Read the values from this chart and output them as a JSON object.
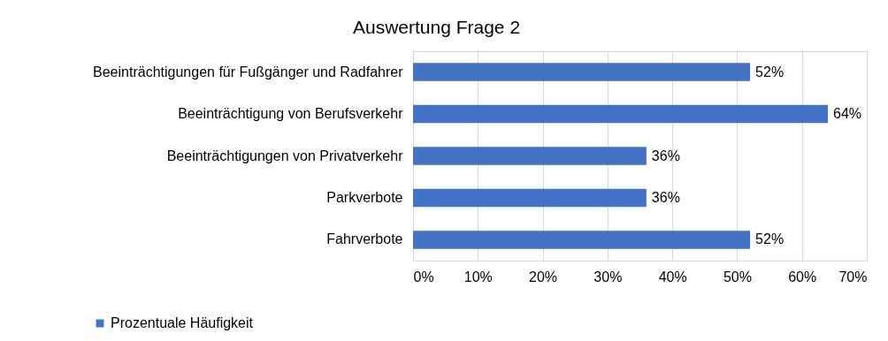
{
  "chart_data": {
    "type": "bar",
    "orientation": "horizontal",
    "title": "Auswertung Frage 2",
    "categories": [
      "Beeinträchtigungen für Fußgänger und Radfahrer",
      "Beeinträchtigung von Berufsverkehr",
      "Beeinträchtigungen von Privatverkehr",
      "Parkverbote",
      "Fahrverbote"
    ],
    "series": [
      {
        "name": "Prozentuale Häufigkeit",
        "color": "#4472c4",
        "values": [
          52,
          64,
          36,
          36,
          52
        ],
        "value_labels": [
          "52%",
          "64%",
          "36%",
          "36%",
          "52%"
        ]
      }
    ],
    "xlim": [
      0,
      70
    ],
    "xticks": [
      {
        "value": 0,
        "label": "0%"
      },
      {
        "value": 10,
        "label": "10%"
      },
      {
        "value": 20,
        "label": "20%"
      },
      {
        "value": 30,
        "label": "30%"
      },
      {
        "value": 40,
        "label": "40%"
      },
      {
        "value": 50,
        "label": "50%"
      },
      {
        "value": 60,
        "label": "60%"
      },
      {
        "value": 70,
        "label": "70%"
      }
    ],
    "grid": "x",
    "legend": "bottom left"
  }
}
